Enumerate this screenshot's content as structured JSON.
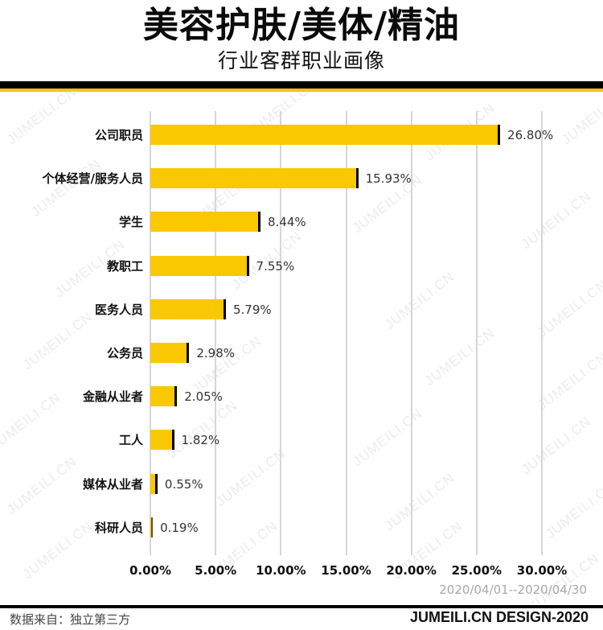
{
  "header": {
    "title": "美容护肤/美体/精油",
    "subtitle": "行业客群职业画像"
  },
  "colors": {
    "bar": "#fac800",
    "bar_cap": "#000000",
    "band_black": "#000000",
    "band_yellow": "#f2c21b",
    "grid": "#d6d6d6"
  },
  "watermark": "JUMEILI.CN",
  "chart_data": {
    "type": "bar",
    "orientation": "horizontal",
    "title": "美容护肤/美体/精油",
    "subtitle": "行业客群职业画像",
    "categories": [
      "公司职员",
      "个体经营/服务人员",
      "学生",
      "教职工",
      "医务人员",
      "公务员",
      "金融从业者",
      "工人",
      "媒体从业者",
      "科研人员"
    ],
    "values": [
      26.8,
      15.93,
      8.44,
      7.55,
      5.79,
      2.98,
      2.05,
      1.82,
      0.55,
      0.19
    ],
    "value_labels": [
      "26.80%",
      "15.93%",
      "8.44%",
      "7.55%",
      "5.79%",
      "2.98%",
      "2.05%",
      "1.82%",
      "0.55%",
      "0.19%"
    ],
    "xlabel": "",
    "ylabel": "",
    "xlim": [
      0,
      30
    ],
    "x_ticks": [
      "0.00%",
      "5.00%",
      "10.00%",
      "15.00%",
      "20.00%",
      "25.00%",
      "30.00%"
    ],
    "grid": true,
    "legend": "none",
    "date_range": "2020/04/01--2020/04/30"
  },
  "footer": {
    "source": "数据来自：独立第三方",
    "brand": "JUMEILI.CN DESIGN-2020"
  }
}
